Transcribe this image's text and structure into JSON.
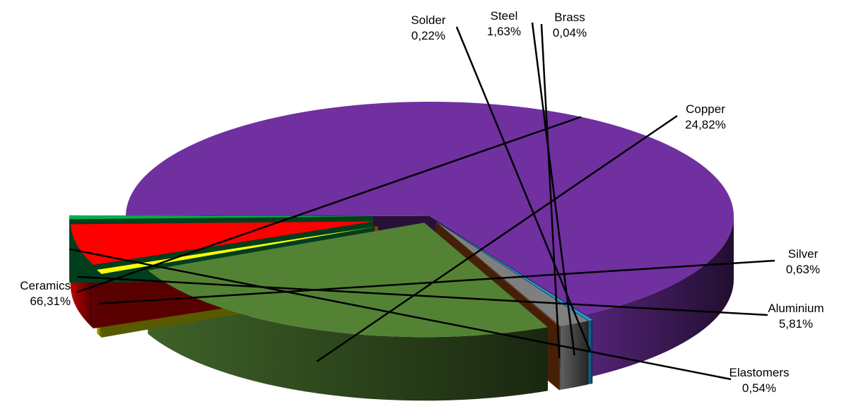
{
  "chart_data": {
    "type": "pie",
    "style": "3d-exploded",
    "title": "",
    "slices": [
      {
        "name": "Ceramics",
        "value": 66.31,
        "label": "66,31%",
        "color": "#7030A0"
      },
      {
        "name": "Solder",
        "value": 0.22,
        "label": "0,22%",
        "color": "#1E9BD7"
      },
      {
        "name": "Steel",
        "value": 1.63,
        "label": "1,63%",
        "color": "#7F7F7F"
      },
      {
        "name": "Brass",
        "value": 0.04,
        "label": "0,04%",
        "color": "#C55A11"
      },
      {
        "name": "Copper",
        "value": 24.82,
        "label": "24,82%",
        "color": "#548235"
      },
      {
        "name": "Silver",
        "value": 0.63,
        "label": "0,63%",
        "color": "#FFFF00"
      },
      {
        "name": "Aluminium",
        "value": 5.81,
        "label": "5,81%",
        "color": "#FF0000"
      },
      {
        "name": "Elastomers",
        "value": 0.54,
        "label": "0,54%",
        "color": "#00B050"
      }
    ]
  }
}
